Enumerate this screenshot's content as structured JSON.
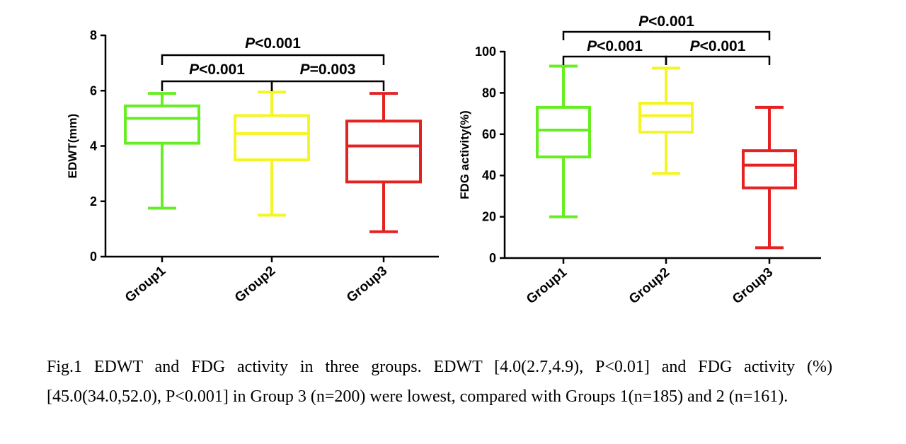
{
  "chart_data": [
    {
      "type": "box",
      "ylabel": "EDWT(mm)",
      "ylim": [
        0,
        8
      ],
      "yticks": [
        0,
        2,
        4,
        6,
        8
      ],
      "categories": [
        "Group1",
        "Group2",
        "Group3"
      ],
      "boxes": [
        {
          "category": "Group1",
          "min": 1.75,
          "q1": 4.1,
          "median": 5.0,
          "q3": 5.45,
          "max": 5.9,
          "color": "#66ee22"
        },
        {
          "category": "Group2",
          "min": 1.5,
          "q1": 3.5,
          "median": 4.45,
          "q3": 5.1,
          "max": 5.95,
          "color": "#f5f523"
        },
        {
          "category": "Group3",
          "min": 0.9,
          "q1": 2.7,
          "median": 4.0,
          "q3": 4.9,
          "max": 5.9,
          "color": "#e52222"
        }
      ],
      "significance": [
        {
          "from": "Group1",
          "to": "Group2",
          "prefix": "P",
          "text": "<0.001",
          "level": 1
        },
        {
          "from": "Group2",
          "to": "Group3",
          "prefix": "P",
          "text": "=0.003",
          "level": 1
        },
        {
          "from": "Group1",
          "to": "Group3",
          "prefix": "P",
          "text": "<0.001",
          "level": 2
        }
      ]
    },
    {
      "type": "box",
      "ylabel": "FDG activity(%)",
      "ylim": [
        0,
        100
      ],
      "yticks": [
        0,
        20,
        40,
        60,
        80,
        100
      ],
      "categories": [
        "Group1",
        "Group2",
        "Group3"
      ],
      "boxes": [
        {
          "category": "Group1",
          "min": 20,
          "q1": 49,
          "median": 62,
          "q3": 73,
          "max": 93,
          "color": "#66ee22"
        },
        {
          "category": "Group2",
          "min": 41,
          "q1": 61,
          "median": 69,
          "q3": 75,
          "max": 92,
          "color": "#f5f523"
        },
        {
          "category": "Group3",
          "min": 5,
          "q1": 34,
          "median": 45,
          "q3": 52,
          "max": 73,
          "color": "#e52222"
        }
      ],
      "significance": [
        {
          "from": "Group1",
          "to": "Group2",
          "prefix": "P",
          "text": "<0.001",
          "level": 1
        },
        {
          "from": "Group2",
          "to": "Group3",
          "prefix": "P",
          "text": "<0.001",
          "level": 1
        },
        {
          "from": "Group1",
          "to": "Group3",
          "prefix": "P",
          "text": "<0.001",
          "level": 2
        }
      ]
    }
  ],
  "caption": "Fig.1 EDWT and FDG activity in three groups. EDWT [4.0(2.7,4.9), P<0.01] and FDG activity (%) [45.0(34.0,52.0), P<0.001] in Group 3 (n=200) were lowest, compared with Groups 1(n=185) and 2 (n=161)."
}
